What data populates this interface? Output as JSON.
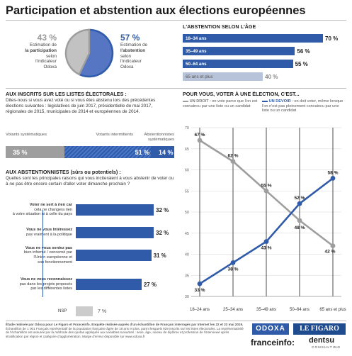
{
  "title": "Participation et abstention aux élections européennes",
  "pie": {
    "left_pct": "43 %",
    "left_label": [
      "Estimation de",
      "la participation",
      "selon",
      "l'indicateur",
      "Odoxa"
    ],
    "right_pct": "57 %",
    "right_label": [
      "Estimation de",
      "l'abstention",
      "selon",
      "l'indicateur",
      "Odoxa"
    ],
    "participation": 43,
    "abstention": 57
  },
  "age": {
    "heading": "L'ABSTENTION SELON L'ÂGE",
    "items": [
      {
        "label": "18–34 ans",
        "value": 70,
        "pct": "70 %",
        "color": "#2f5ba8"
      },
      {
        "label": "35–49 ans",
        "value": 56,
        "pct": "56 %",
        "color": "#2f5ba8"
      },
      {
        "label": "50–64 ans",
        "value": 55,
        "pct": "55 %",
        "color": "#2f5ba8"
      },
      {
        "label": "65 ans et plus",
        "value": 40,
        "pct": "40 %",
        "color": "#b7c3d8"
      }
    ]
  },
  "inscrits": {
    "heading": "AUX INSCRITS SUR LES LISTES ÉLECTORALES :",
    "text": "Dites-nous si vous avez voté ou si vous êtes abstenu lors des précédentes élections suivantes : législatives de juin 2017, présidentielle de mai 2017, régionales de 2015, municipales de 2014 et européennes de 2014.",
    "seg_labels": [
      "Votants systématiques",
      "Votants intermittents",
      "Abstentionnistes systématiques"
    ],
    "values": [
      35,
      51,
      14
    ],
    "pcts": [
      "35 %",
      "51 %",
      "14 %"
    ]
  },
  "abst": {
    "heading": "AUX ABSTENTIONNISTES (sûrs ou potentiels) :",
    "text": "Quelles sont les principales raisons qui vous inciteraient à vous abstenir de voter ou à ne pas être encore certain d'aller voter dimanche prochain ?",
    "reasons": [
      {
        "lines": [
          "Voter ne sert à rien car",
          "cela ne changera rien",
          "à votre situation ni à celle du pays"
        ],
        "value": 32,
        "pct": "32 %"
      },
      {
        "lines": [
          "Vous ne vous intéressez",
          "pas vraiment à la politique"
        ],
        "value": 32,
        "pct": "32 %"
      },
      {
        "lines": [
          "Vous ne vous sentez pas",
          "bien informé / concerné par",
          "l'Union européenne et",
          "son fonctionnement"
        ],
        "value": 31,
        "pct": "31 %"
      },
      {
        "lines": [
          "Vous ne vous reconnaissez",
          "pas dans les projets proposés",
          "par les différentes listes"
        ],
        "value": 27,
        "pct": "27 %"
      }
    ],
    "nsp_label": "NSP",
    "nsp_value": 7,
    "nsp_pct": "7 %"
  },
  "chart_data": {
    "type": "line",
    "title": "POUR VOUS, VOTER À UNE ÉLECTION, C'EST...",
    "categories": [
      "18–24 ans",
      "25–34 ans",
      "35–49 ans",
      "50–64 ans",
      "65 ans et plus"
    ],
    "ylim": [
      30,
      70
    ],
    "yticks": [
      30,
      35,
      40,
      45,
      50,
      55,
      60,
      65,
      70
    ],
    "series": [
      {
        "name": "UN DROIT",
        "desc": ": on vote parce que l'on est convaincu par une liste ou un candidat",
        "color": "#9e9e9e",
        "values": [
          67,
          62,
          55,
          48,
          42
        ],
        "labels": [
          "67 %",
          "62 %",
          "55 %",
          "48 %",
          "42 %"
        ]
      },
      {
        "name": "UN DEVOIR",
        "desc": ": on doit voter, même lorsque l'on n'est pas pleinement convaincu par une liste ou un candidat",
        "color": "#2f5ba8",
        "values": [
          33,
          38,
          43,
          52,
          58
        ],
        "labels": [
          "33 %",
          "38 %",
          "43 %",
          "52 %",
          "58 %"
        ]
      }
    ]
  },
  "footer": {
    "line1": "Étude réalisée par Odoxa pour Le Figaro et Franceinfo. Enquête réalisée auprès d'un échantillon de Français interrogés par Internet les 22 et 23 mai 2019.",
    "line2": "Échantillon de 1 001 Français représentatif de la population française âgée de 18 ans et plus, parmi lesquels 929 inscrits sur les listes électorales. La représentativité",
    "line3": "de l'échantillon est assurée par la méthode des quotas appliquée aux variables suivantes : sexe, âge, niveau de diplôme et profession de l'interviewé après",
    "line4": "stratification par région et catégorie d'agglomération. Marge d'erreur disponible sur www.odoxa.fr"
  },
  "logos": {
    "odoxa": "ODOXA",
    "figaro": "LE FIGARO",
    "franceinfo": "franceinfo:",
    "dentsu": "dentsu",
    "consulting": "CONSULTING"
  }
}
